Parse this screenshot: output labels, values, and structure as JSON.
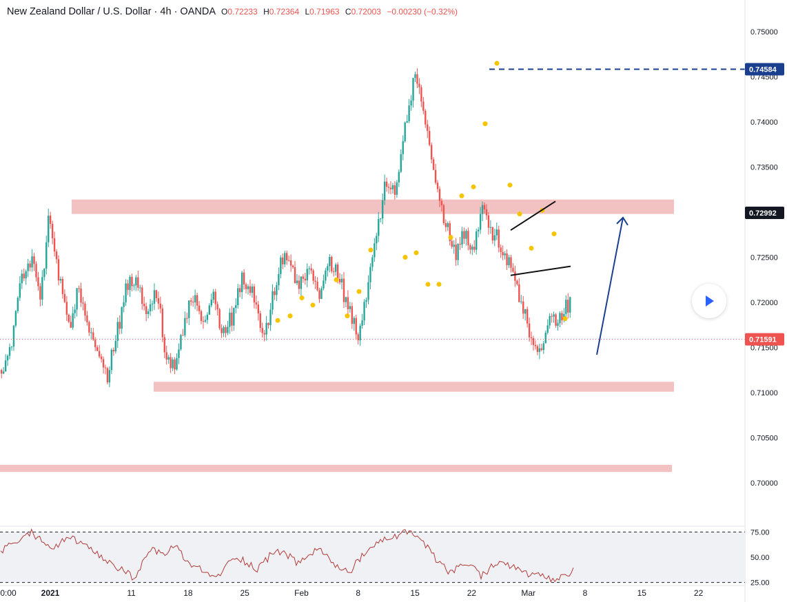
{
  "header": {
    "title": "New Zealand Dollar / U.S. Dollar · 4h · OANDA",
    "ohlc": [
      {
        "label": "O",
        "value": "0.72233"
      },
      {
        "label": "H",
        "value": "0.72364"
      },
      {
        "label": "L",
        "value": "0.71963"
      },
      {
        "label": "C",
        "value": "0.72003"
      },
      {
        "label": "",
        "value": "−0.00230 (−0.32%)"
      }
    ]
  },
  "colors": {
    "up": "#26a69a",
    "down": "#ef5350",
    "zone": "#f2c1c1",
    "signal_dot": "#f5c400",
    "forecast_arrow": "#1a3f8f",
    "price_tag": "#ef5350",
    "level_tag": "#1a3f8f",
    "rsi_line": "#b23a3a"
  },
  "play_button": {
    "icon": "play-icon"
  },
  "chart_data": [
    {
      "type": "candlestick",
      "symbol": "NZDUSD",
      "interval": "4h",
      "y_range": [
        0.6955,
        0.7515
      ],
      "y_axis_ticks": [
        "0.75000",
        "0.74500",
        "0.74000",
        "0.73500",
        "0.73000",
        "0.72500",
        "0.72000",
        "0.71500",
        "0.71000",
        "0.70500",
        "0.70000"
      ],
      "x_axis_ticks": [
        "0:00",
        "2021",
        "11",
        "18",
        "25",
        "Feb",
        "8",
        "15",
        "22",
        "Mar",
        "8",
        "15",
        "22"
      ],
      "anchors": [
        [
          0.711,
          0.7132
        ],
        [
          0.7138,
          0.7165
        ],
        [
          0.72,
          0.725
        ],
        [
          0.723,
          0.7272
        ],
        [
          0.7195,
          0.7222
        ],
        [
          0.7288,
          0.7305
        ],
        [
          0.7205,
          0.724
        ],
        [
          0.716,
          0.719
        ],
        [
          0.7198,
          0.724
        ],
        [
          0.7165,
          0.7182
        ],
        [
          0.713,
          0.7148
        ],
        [
          0.7112,
          0.7122
        ],
        [
          0.715,
          0.7175
        ],
        [
          0.7198,
          0.7238
        ],
        [
          0.7218,
          0.724
        ],
        [
          0.7165,
          0.7192
        ],
        [
          0.72,
          0.724
        ],
        [
          0.713,
          0.7155
        ],
        [
          0.7112,
          0.7132
        ],
        [
          0.7168,
          0.7205
        ],
        [
          0.72,
          0.7222
        ],
        [
          0.7165,
          0.718
        ],
        [
          0.719,
          0.7222
        ],
        [
          0.715,
          0.717
        ],
        [
          0.7168,
          0.7198
        ],
        [
          0.7215,
          0.7242
        ],
        [
          0.7198,
          0.7225
        ],
        [
          0.715,
          0.7175
        ],
        [
          0.7178,
          0.721
        ],
        [
          0.7235,
          0.726
        ],
        [
          0.7232,
          0.725
        ],
        [
          0.721,
          0.7235
        ],
        [
          0.7232,
          0.7252
        ],
        [
          0.7188,
          0.7215
        ],
        [
          0.723,
          0.7262
        ],
        [
          0.7215,
          0.7232
        ],
        [
          0.7175,
          0.7208
        ],
        [
          0.716,
          0.717
        ],
        [
          0.7198,
          0.7222
        ],
        [
          0.7275,
          0.73
        ],
        [
          0.7325,
          0.7342
        ],
        [
          0.7312,
          0.733
        ],
        [
          0.7398,
          0.7418
        ],
        [
          0.7455,
          0.7462
        ],
        [
          0.7395,
          0.7405
        ],
        [
          0.7325,
          0.7335
        ],
        [
          0.7278,
          0.73
        ],
        [
          0.7238,
          0.726
        ],
        [
          0.727,
          0.7282
        ],
        [
          0.725,
          0.727
        ],
        [
          0.7298,
          0.731
        ],
        [
          0.727,
          0.7285
        ],
        [
          0.725,
          0.7262
        ],
        [
          0.7222,
          0.7242
        ],
        [
          0.7195,
          0.7212
        ],
        [
          0.715,
          0.7168
        ],
        [
          0.7135,
          0.715
        ],
        [
          0.7172,
          0.7195
        ],
        [
          0.7168,
          0.7185
        ],
        [
          0.72,
          0.72
        ]
      ],
      "zones": [
        {
          "from": 0.7298,
          "to": 0.7314,
          "start": "Jan 4",
          "end": "Mar 20"
        },
        {
          "from": 0.7101,
          "to": 0.7112,
          "start": "Jan 14",
          "end": "Mar 20"
        },
        {
          "from": 0.7012,
          "to": 0.702,
          "start": "Dec 30",
          "end": "Mar 20"
        }
      ],
      "signals": [
        0.718,
        0.7185,
        0.7205,
        0.7197,
        0.7225,
        0.7185,
        0.7212,
        0.7258,
        0.725,
        0.7255,
        0.722,
        0.722,
        0.7272,
        0.7318,
        0.7328,
        0.7398,
        0.7465,
        0.733,
        0.7298,
        0.726,
        0.7302,
        0.7276,
        0.7182
      ],
      "resistance_level": {
        "value": 0.74584,
        "label": "0.74584"
      },
      "current_price": {
        "value": 0.71591,
        "label": "0.71591"
      },
      "prior_close": {
        "value": 0.72992,
        "label": "0.72992"
      },
      "pattern_lines": [
        [
          [
            0.728,
            0.7312
          ]
        ],
        [
          [
            0.723,
            0.724
          ]
        ]
      ],
      "forecast": {
        "start": 0.7142,
        "end": 0.7294
      }
    },
    {
      "type": "line",
      "indicator": "RSI",
      "y_range": [
        22,
        80
      ],
      "y_axis_ticks": [
        "75.00",
        "50.00",
        "25.00"
      ],
      "bands": [
        75,
        25
      ],
      "anchors": [
        55,
        62,
        68,
        74,
        68,
        58,
        65,
        70,
        62,
        55,
        48,
        42,
        36,
        30,
        45,
        58,
        52,
        62,
        48,
        40,
        35,
        29,
        40,
        52,
        45,
        38,
        48,
        58,
        52,
        44,
        50,
        60,
        48,
        40,
        35,
        46,
        58,
        64,
        70,
        72,
        76,
        68,
        55,
        42,
        35,
        40,
        44,
        30,
        42,
        46,
        40,
        36,
        32,
        30,
        26,
        31,
        36
      ]
    }
  ]
}
